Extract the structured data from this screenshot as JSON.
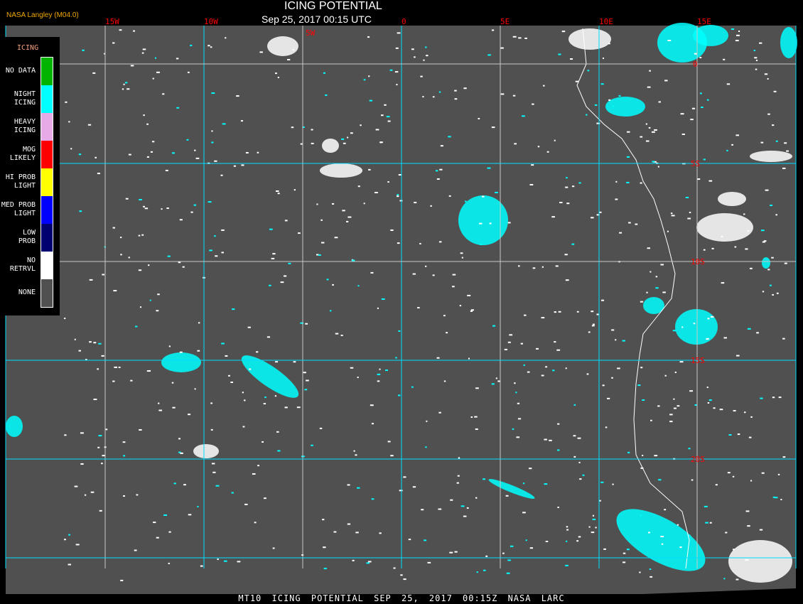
{
  "header": {
    "title": "ICING POTENTIAL",
    "subtitle": "Sep 25, 2017 00:15 UTC",
    "credit": "NASA Langley (M04.0)"
  },
  "footer": "MT10   ICING POTENTIAL   SEP 25, 2017 00:15Z   NASA LARC",
  "legend": {
    "title": "ICING",
    "items": [
      {
        "label": "NO DATA",
        "color": "#00b400"
      },
      {
        "label": "NIGHT ICING",
        "color": "#00ffff"
      },
      {
        "label": "HEAVY ICING",
        "color": "#e8aae6"
      },
      {
        "label": "MOG LIKELY",
        "color": "#ff0000"
      },
      {
        "label": "HI PROB LIGHT",
        "color": "#ffff00"
      },
      {
        "label": "MED PROB LIGHT",
        "color": "#0000ff"
      },
      {
        "label": "LOW PROB",
        "color": "#000070"
      },
      {
        "label": "NO RETRVL",
        "color": "#ffffff"
      },
      {
        "label": "NONE",
        "color": "#505050"
      }
    ]
  },
  "map": {
    "background_color": "#505050",
    "grid_color_major": "#00e0ff",
    "grid_color_minor": "#c8c8c8",
    "label_color": "#ff0000",
    "longitude_labels": [
      "15W",
      "10W",
      "5W",
      "0",
      "5E",
      "10E",
      "15E"
    ],
    "latitude_labels": [
      "0",
      "5S",
      "10S",
      "15S",
      "20S"
    ]
  }
}
